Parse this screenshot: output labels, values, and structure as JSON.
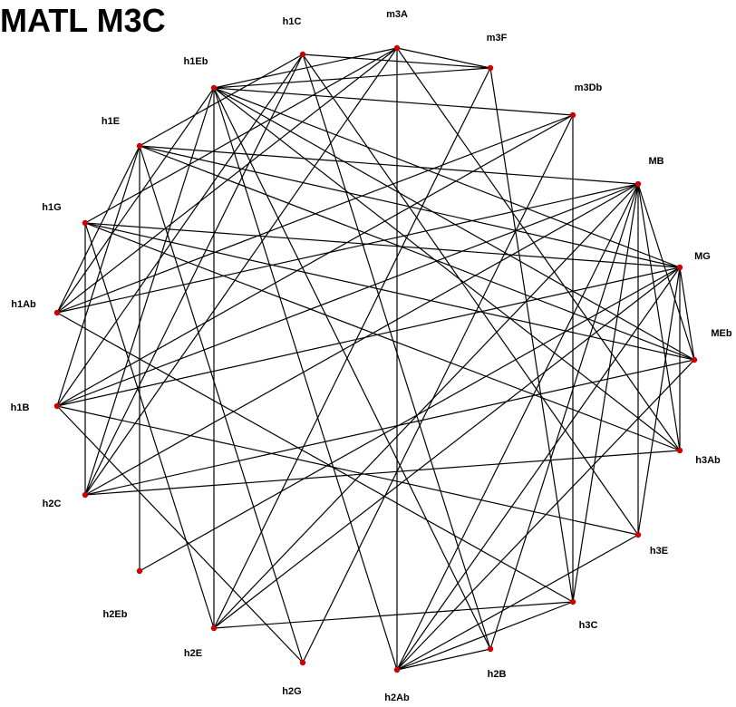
{
  "title": "MATL M3C",
  "colors": {
    "node": "#cc0000",
    "edge": "#000000",
    "background": "#ffffff"
  },
  "nodes": [
    "h1C",
    "m3A",
    "m3F",
    "m3Db",
    "MB",
    "MG",
    "MEb",
    "h3Ab",
    "h3E",
    "h3C",
    "h2B",
    "h2Ab",
    "h2G",
    "h2E",
    "h2Eb",
    "h2C",
    "h1B",
    "h1Ab",
    "h1G",
    "h1E",
    "h1Eb"
  ],
  "edges": [
    [
      "h1C",
      "m3F"
    ],
    [
      "h1C",
      "h1E"
    ],
    [
      "h1C",
      "h2C"
    ],
    [
      "h1C",
      "h3E"
    ],
    [
      "h1C",
      "h2B"
    ],
    [
      "h1C",
      "h1B"
    ],
    [
      "m3A",
      "h1Eb"
    ],
    [
      "m3A",
      "m3F"
    ],
    [
      "m3A",
      "h2Ab"
    ],
    [
      "m3A",
      "h1Ab"
    ],
    [
      "m3A",
      "h3Ab"
    ],
    [
      "m3A",
      "h2C"
    ],
    [
      "m3A",
      "h1G"
    ],
    [
      "m3F",
      "h1Eb"
    ],
    [
      "m3F",
      "h3C"
    ],
    [
      "m3F",
      "h2E"
    ],
    [
      "m3Db",
      "h1Eb"
    ],
    [
      "m3Db",
      "h3C"
    ],
    [
      "m3Db",
      "h1Ab"
    ],
    [
      "m3Db",
      "h1B"
    ],
    [
      "m3Db",
      "h2G"
    ],
    [
      "MB",
      "h1E"
    ],
    [
      "MB",
      "h2Ab"
    ],
    [
      "MB",
      "h2E"
    ],
    [
      "MB",
      "MEb"
    ],
    [
      "MB",
      "h2B"
    ],
    [
      "MB",
      "h2C"
    ],
    [
      "MB",
      "h1Ab"
    ],
    [
      "MB",
      "h3C"
    ],
    [
      "MB",
      "h1B"
    ],
    [
      "MG",
      "MEb"
    ],
    [
      "MG",
      "h1E"
    ],
    [
      "MG",
      "h1Eb"
    ],
    [
      "MG",
      "h1G"
    ],
    [
      "MG",
      "h1B"
    ],
    [
      "MG",
      "h2Eb"
    ],
    [
      "MG",
      "h2Ab"
    ],
    [
      "MG",
      "h3E"
    ],
    [
      "MG",
      "h2E"
    ],
    [
      "MEb",
      "h1E"
    ],
    [
      "MEb",
      "h1Eb"
    ],
    [
      "MEb",
      "h2C"
    ],
    [
      "MEb",
      "h1G"
    ],
    [
      "MEb",
      "h2Ab"
    ],
    [
      "h3Ab",
      "h1Eb"
    ],
    [
      "h3Ab",
      "h2C"
    ],
    [
      "h3Ab",
      "MG"
    ],
    [
      "h3Ab",
      "h1G"
    ],
    [
      "h3Ab",
      "MB"
    ],
    [
      "h3E",
      "h1B"
    ],
    [
      "h3E",
      "h2Ab"
    ],
    [
      "h3E",
      "MB"
    ],
    [
      "h3C",
      "h2E"
    ],
    [
      "h3C",
      "h1Ab"
    ],
    [
      "h3C",
      "h2Ab"
    ],
    [
      "h2B",
      "h2Ab"
    ],
    [
      "h2B",
      "h1Eb"
    ],
    [
      "h2Ab",
      "h1Eb"
    ],
    [
      "h2G",
      "h1E"
    ],
    [
      "h2G",
      "h1B"
    ],
    [
      "h2E",
      "h1G"
    ],
    [
      "h2E",
      "h1Eb"
    ],
    [
      "h2Eb",
      "h1E"
    ],
    [
      "h2C",
      "h1Eb"
    ],
    [
      "h2C",
      "h1G"
    ],
    [
      "h1B",
      "h1E"
    ],
    [
      "h1Ab",
      "h1E"
    ],
    [
      "h1Ab",
      "h1Eb"
    ]
  ]
}
